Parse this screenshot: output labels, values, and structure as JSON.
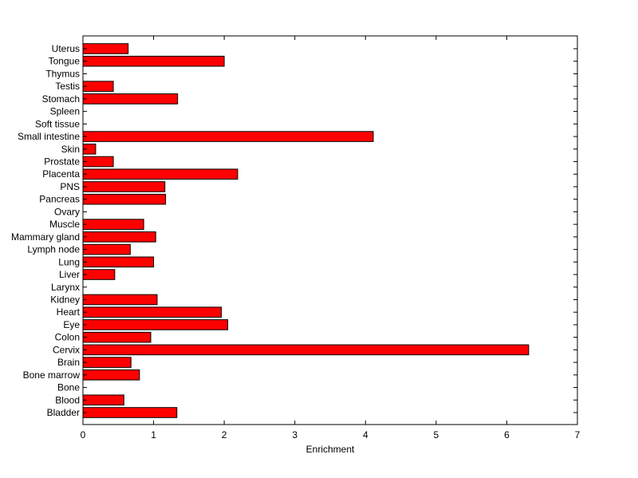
{
  "chart_data": {
    "type": "bar",
    "orientation": "horizontal",
    "title": "",
    "xlabel": "Enrichment",
    "ylabel": "",
    "xlim": [
      0,
      7
    ],
    "xticks": [
      "0",
      "1",
      "2",
      "3",
      "4",
      "5",
      "6",
      "7"
    ],
    "grid": false,
    "legend": "none",
    "bar_color": "#ff0000",
    "categories": [
      "Bladder",
      "Blood",
      "Bone",
      "Bone marrow",
      "Brain",
      "Cervix",
      "Colon",
      "Eye",
      "Heart",
      "Kidney",
      "Larynx",
      "Liver",
      "Lung",
      "Lymph node",
      "Mammary gland",
      "Muscle",
      "Ovary",
      "Pancreas",
      "PNS",
      "Placenta",
      "Prostate",
      "Skin",
      "Small intestine",
      "Soft tissue",
      "Spleen",
      "Stomach",
      "Testis",
      "Thymus",
      "Tongue",
      "Uterus"
    ],
    "values": [
      1.33,
      0.58,
      0,
      0.8,
      0.68,
      6.31,
      0.96,
      2.05,
      1.96,
      1.05,
      0,
      0.45,
      1.0,
      0.67,
      1.03,
      0.86,
      0,
      1.17,
      1.16,
      2.19,
      0.43,
      0.18,
      4.11,
      0,
      0,
      1.34,
      0.43,
      0,
      2.0,
      0.64
    ]
  }
}
